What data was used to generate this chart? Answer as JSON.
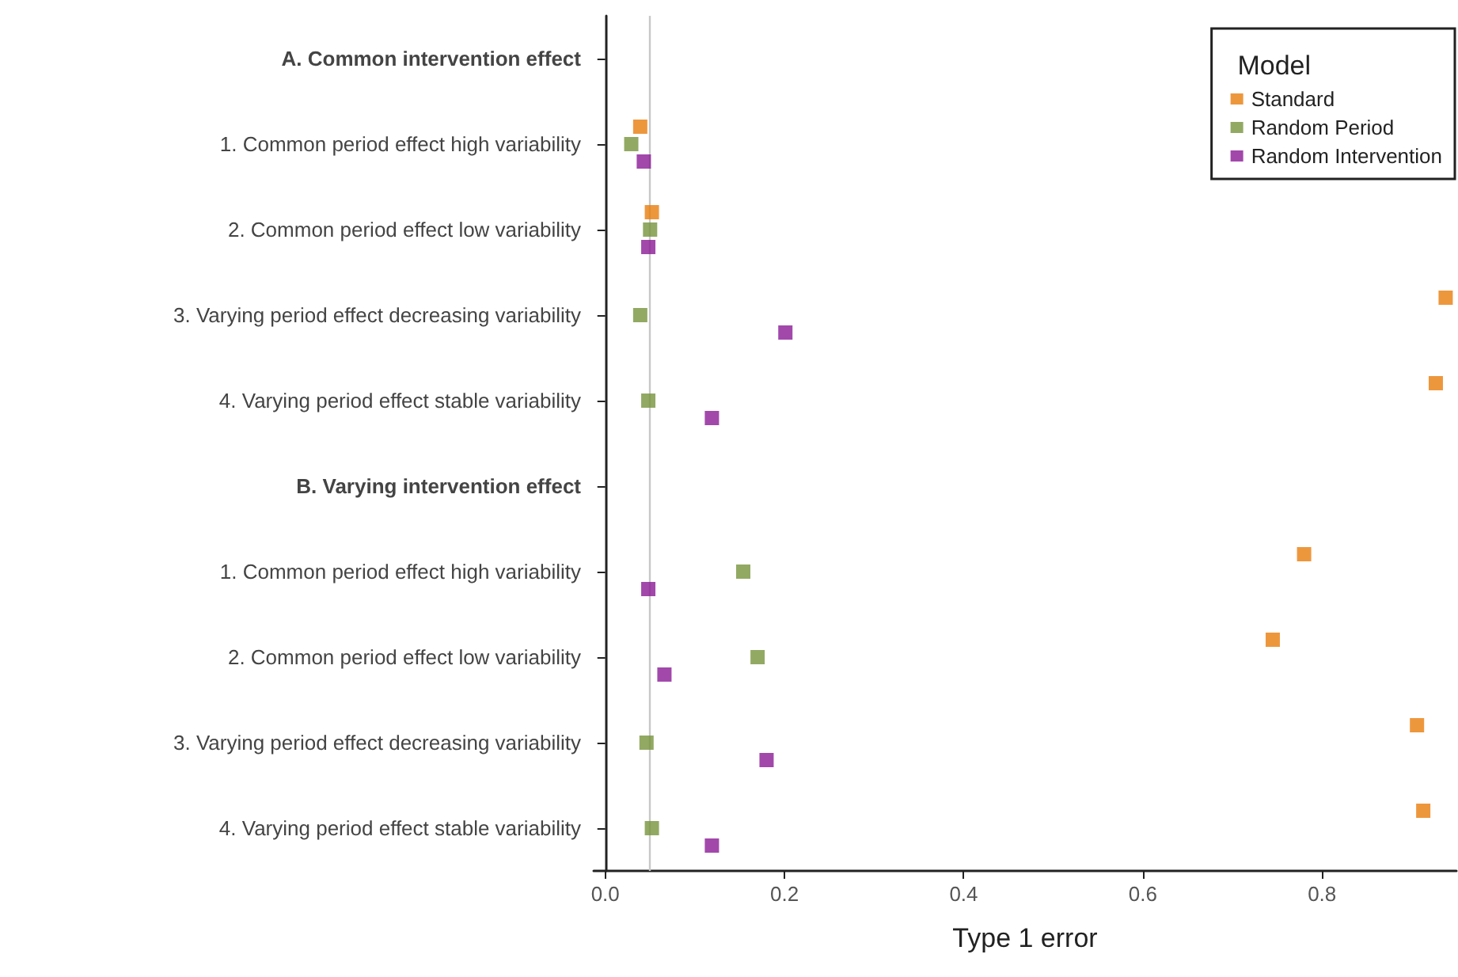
{
  "chart_data": {
    "type": "scatter",
    "orientation": "horizontal",
    "xlabel": "Type 1 error",
    "legend_title": "Model",
    "legend": "top right",
    "grid": false,
    "marker": "square",
    "categories": [
      "A. Common intervention effect",
      "1. Common period effect high variability",
      "2. Common period effect low variability",
      "3. Varying period effect decreasing variability",
      "4. Varying period effect stable variability",
      "B. Varying intervention effect",
      "1. Common period effect high variability",
      "2. Common period effect low variability",
      "3. Varying period effect decreasing variability",
      "4. Varying period effect stable variability"
    ],
    "xlim": [
      -0.013,
      0.95
    ],
    "xticks": [
      {
        "value": 0,
        "label": "0.0"
      },
      {
        "value": 0.2,
        "label": "0.2"
      },
      {
        "value": 0.4,
        "label": "0.4"
      },
      {
        "value": 0.6,
        "label": "0.6"
      },
      {
        "value": 0.8,
        "label": "0.8"
      }
    ],
    "ref_lines": [
      {
        "axis": "x",
        "value": 0.05,
        "label": null,
        "color": "#c8c8c8"
      }
    ],
    "series": [
      {
        "name": "Standard",
        "color": "#e87d0d",
        "values": [
          null,
          0.039,
          0.052,
          0.938,
          0.927,
          null,
          0.78,
          0.745,
          0.906,
          0.913
        ]
      },
      {
        "name": "Random Period",
        "color": "#77933c",
        "values": [
          null,
          0.029,
          0.05,
          0.039,
          0.048,
          null,
          0.154,
          0.17,
          0.046,
          0.052
        ]
      },
      {
        "name": "Random Intervention",
        "color": "#8b1a96",
        "values": [
          null,
          0.043,
          0.048,
          0.201,
          0.119,
          null,
          0.048,
          0.066,
          0.18,
          0.119
        ]
      }
    ]
  }
}
